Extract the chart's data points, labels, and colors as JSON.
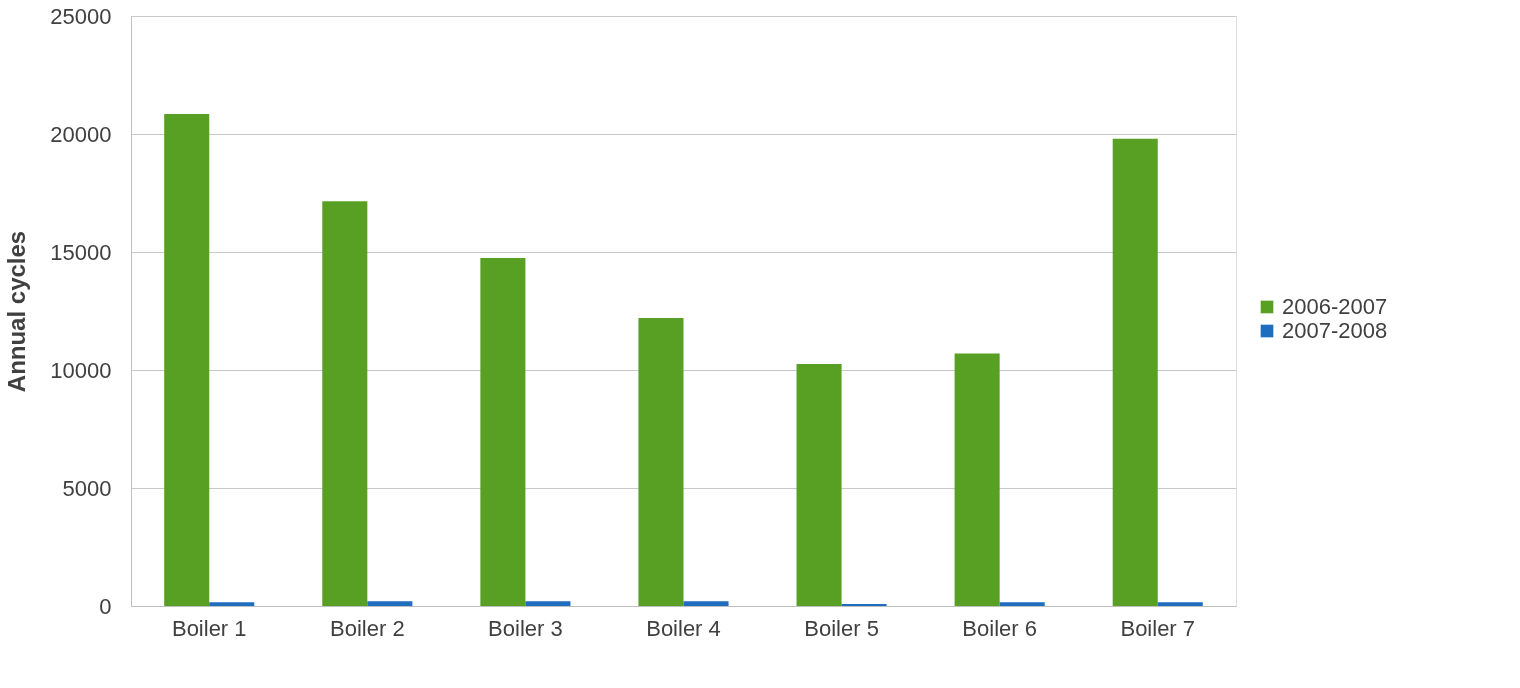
{
  "chart_data": {
    "type": "bar",
    "ylabel": "Annual cycles",
    "categories": [
      "Boiler 1",
      "Boiler 2",
      "Boiler 3",
      "Boiler 4",
      "Boiler 5",
      "Boiler 6",
      "Boiler 7"
    ],
    "series": [
      {
        "name": "2006-2007",
        "color": "#57a023",
        "values": [
          20850,
          17150,
          14750,
          12200,
          10250,
          10700,
          19800
        ]
      },
      {
        "name": "2007-2008",
        "color": "#1f6dbf",
        "values": [
          160,
          200,
          200,
          200,
          80,
          160,
          160
        ]
      }
    ],
    "ylim": [
      0,
      25000
    ],
    "yticks": [
      0,
      5000,
      10000,
      15000,
      20000,
      25000
    ],
    "grid": "y",
    "legend": "right"
  }
}
